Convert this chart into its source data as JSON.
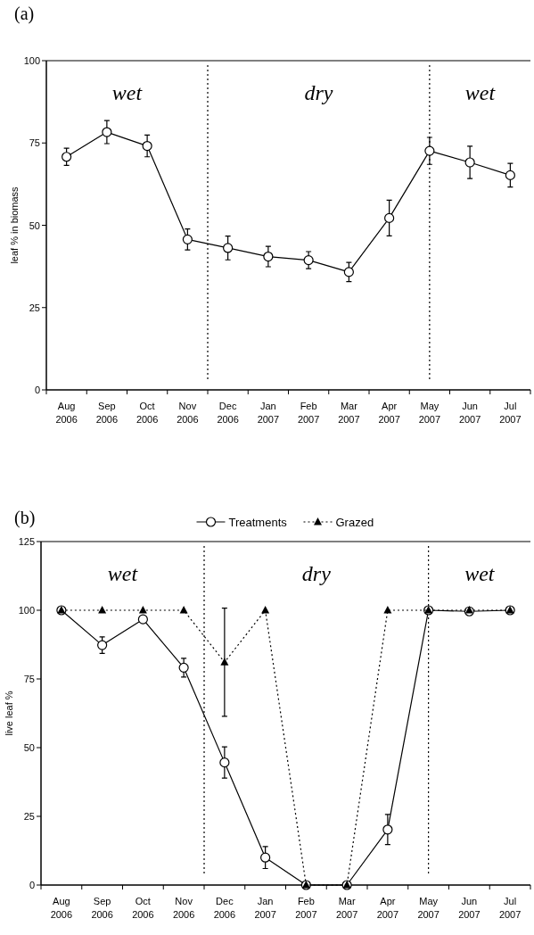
{
  "chart_data": [
    {
      "type": "line",
      "title": "(a)",
      "ylabel": "leaf % in biomass",
      "categories": [
        "Aug\n2006",
        "Sep\n2006",
        "Oct\n2006",
        "Nov\n2006",
        "Dec\n2006",
        "Jan\n2007",
        "Feb\n2007",
        "Mar\n2007",
        "Apr\n2007",
        "May\n2007",
        "Jun\n2007",
        "Jul\n2007"
      ],
      "series": [
        {
          "color": "#000000",
          "marker": "circle",
          "line_style": "solid",
          "values": [
            70.8,
            78.3,
            74.1,
            45.7,
            43.1,
            40.5,
            39.4,
            35.8,
            52.2,
            72.6,
            69.1,
            65.2
          ],
          "errors": [
            2.6,
            3.5,
            3.3,
            3.2,
            3.6,
            3.1,
            2.6,
            2.9,
            5.4,
            4.1,
            4.9,
            3.6
          ]
        }
      ],
      "ylim": [
        0,
        100
      ],
      "yticks": [
        0,
        25,
        50,
        75,
        100
      ],
      "annotations": [
        "wet",
        "dry",
        "wet"
      ]
    },
    {
      "type": "line",
      "title": "(b)",
      "ylabel": "live leaf %",
      "categories": [
        "Aug\n2006",
        "Sep\n2006",
        "Oct\n2006",
        "Nov\n2006",
        "Dec\n2006",
        "Jan\n2007",
        "Feb\n2007",
        "Mar\n2007",
        "Apr\n2007",
        "May\n2007",
        "Jun\n2007",
        "Jul\n2007"
      ],
      "series": [
        {
          "name": "Treatments",
          "color": "#000000",
          "marker": "circle",
          "line_style": "solid",
          "values": [
            100,
            87.3,
            96.7,
            79.1,
            44.6,
            10,
            0,
            0,
            20.2,
            100,
            99.6,
            100
          ],
          "errors": [
            null,
            3,
            null,
            3.4,
            5.7,
            4,
            null,
            null,
            5.5,
            null,
            null,
            null
          ]
        },
        {
          "name": "Grazed",
          "color": "#000000",
          "marker": "triangle",
          "line_style": "dotted",
          "values": [
            100,
            100,
            100,
            100,
            81.1,
            100,
            0,
            0,
            100,
            100,
            100,
            100
          ],
          "errors": [
            null,
            null,
            null,
            null,
            19.7,
            null,
            null,
            null,
            null,
            null,
            null,
            null
          ]
        }
      ],
      "ylim": [
        0,
        125
      ],
      "yticks": [
        0,
        25,
        50,
        75,
        100,
        125
      ],
      "legend": "top",
      "annotations": [
        "wet",
        "dry",
        "wet"
      ]
    }
  ]
}
